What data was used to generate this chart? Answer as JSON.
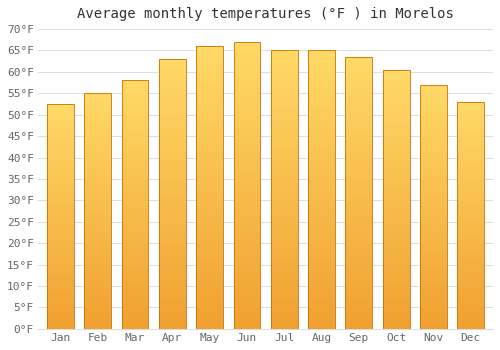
{
  "title": "Average monthly temperatures (°F ) in Morelos",
  "months": [
    "Jan",
    "Feb",
    "Mar",
    "Apr",
    "May",
    "Jun",
    "Jul",
    "Aug",
    "Sep",
    "Oct",
    "Nov",
    "Dec"
  ],
  "values": [
    52.5,
    55.0,
    58.0,
    63.0,
    66.0,
    67.0,
    65.0,
    65.0,
    63.5,
    60.5,
    57.0,
    53.0
  ],
  "bar_color_top": "#FFD966",
  "bar_color_bottom": "#F0A030",
  "bar_color_mid": "#FFA500",
  "bar_edge_color": "#C87000",
  "background_color": "#ffffff",
  "grid_color": "#dddddd",
  "ylim": [
    0,
    70
  ],
  "ytick_step": 5,
  "title_fontsize": 10,
  "tick_fontsize": 8,
  "font_family": "monospace",
  "bar_width": 0.72
}
